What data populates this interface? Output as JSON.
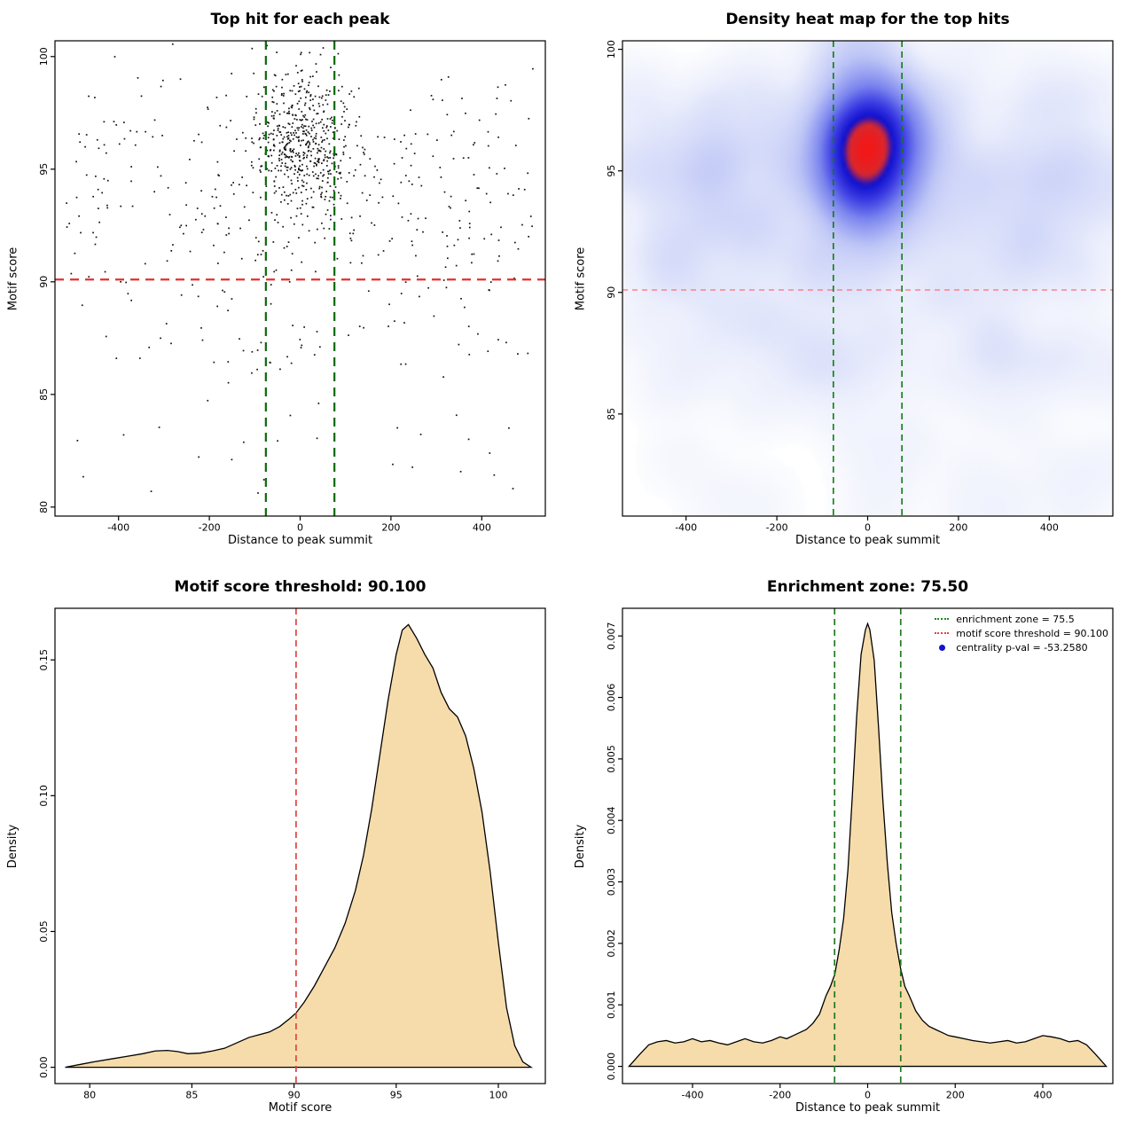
{
  "page": {
    "background": "#ffffff"
  },
  "chart_data": [
    {
      "type": "scatter",
      "title": "Top hit for each peak",
      "xlabel": "Distance to peak summit",
      "ylabel": "Motif score",
      "xlim": [
        -540,
        540
      ],
      "ylim": [
        79.6,
        100.7
      ],
      "xtick_values": [
        -400,
        -200,
        0,
        200,
        400
      ],
      "xtick_labels": [
        "-400",
        "-200",
        "0",
        "200",
        "400"
      ],
      "ytick_values": [
        80,
        85,
        90,
        95,
        100
      ],
      "ytick_labels": [
        "80",
        "85",
        "90",
        "95",
        "100"
      ],
      "point_color": "#111111",
      "point_size": 1.7,
      "points": {
        "seed": 424242,
        "clusters": [
          {
            "n": 520,
            "x": {
              "dist": "normal",
              "mean": 5,
              "sd": 55
            },
            "y": {
              "dist": "normal",
              "mean": 96.2,
              "sd": 1.6
            }
          },
          {
            "n": 330,
            "x": {
              "dist": "uniform",
              "min": -515,
              "max": 515
            },
            "y": {
              "dist": "normal",
              "mean": 94.5,
              "sd": 2.6
            }
          },
          {
            "n": 90,
            "x": {
              "dist": "uniform",
              "min": -515,
              "max": 515
            },
            "y": {
              "dist": "uniform",
              "min": 86,
              "max": 93
            }
          },
          {
            "n": 40,
            "x": {
              "dist": "uniform",
              "min": -515,
              "max": 515
            },
            "y": {
              "dist": "uniform",
              "min": 80.3,
              "max": 88
            }
          }
        ]
      },
      "hlines": [
        {
          "y": 90.1,
          "color": "#e03131",
          "width": 2.2,
          "dash": [
            10,
            7
          ]
        }
      ],
      "vlines": [
        {
          "x": -75.5,
          "color": "#0a6a0a",
          "width": 2.2,
          "dash": [
            10,
            7
          ]
        },
        {
          "x": 75.5,
          "color": "#0a6a0a",
          "width": 2.2,
          "dash": [
            10,
            7
          ]
        }
      ]
    },
    {
      "type": "density2d",
      "title": "Density heat map for the top hits",
      "xlabel": "Distance to peak summit",
      "ylabel": "Motif score",
      "xlim": [
        -540,
        540
      ],
      "ylim": [
        80.8,
        100.35
      ],
      "xtick_values": [
        -400,
        -200,
        0,
        200,
        400
      ],
      "xtick_labels": [
        "-400",
        "-200",
        "0",
        "200",
        "400"
      ],
      "ytick_values": [
        85,
        90,
        95,
        100
      ],
      "ytick_labels": [
        "85",
        "90",
        "95",
        "100"
      ],
      "points": {
        "seed": 171717,
        "clusters": [
          {
            "n": 520,
            "x": {
              "dist": "normal",
              "mean": 5,
              "sd": 55
            },
            "y": {
              "dist": "normal",
              "mean": 96.0,
              "sd": 1.6
            }
          },
          {
            "n": 330,
            "x": {
              "dist": "uniform",
              "min": -515,
              "max": 515
            },
            "y": {
              "dist": "normal",
              "mean": 94.5,
              "sd": 2.6
            }
          },
          {
            "n": 90,
            "x": {
              "dist": "uniform",
              "min": -515,
              "max": 515
            },
            "y": {
              "dist": "uniform",
              "min": 86,
              "max": 93
            }
          },
          {
            "n": 40,
            "x": {
              "dist": "uniform",
              "min": -515,
              "max": 515
            },
            "y": {
              "dist": "uniform",
              "min": 81,
              "max": 88
            }
          }
        ]
      },
      "grid": {
        "nx": 138,
        "ny": 132,
        "blur_radius": 5,
        "blur_passes": 3,
        "gamma": 0.5
      },
      "colormap": [
        {
          "t": 0.0,
          "rgb": [
            255,
            255,
            255
          ]
        },
        {
          "t": 0.15,
          "rgb": [
            236,
            239,
            252
          ]
        },
        {
          "t": 0.38,
          "rgb": [
            189,
            197,
            246
          ]
        },
        {
          "t": 0.6,
          "rgb": [
            122,
            132,
            238
          ]
        },
        {
          "t": 0.76,
          "rgb": [
            58,
            58,
            226
          ]
        },
        {
          "t": 0.87,
          "rgb": [
            16,
            16,
            206
          ]
        },
        {
          "t": 0.93,
          "rgb": [
            214,
            40,
            46
          ]
        },
        {
          "t": 1.0,
          "rgb": [
            242,
            24,
            24
          ]
        }
      ],
      "hlines": [
        {
          "y": 90.1,
          "color": "#ff6f6f",
          "width": 1.3,
          "dash": [
            6,
            5
          ]
        }
      ],
      "vlines": [
        {
          "x": -75.5,
          "color": "#127a12",
          "width": 1.6,
          "dash": [
            7,
            5
          ]
        },
        {
          "x": 75.5,
          "color": "#127a12",
          "width": 1.6,
          "dash": [
            7,
            5
          ]
        }
      ]
    },
    {
      "type": "density",
      "title": "Motif score threshold: 90.100",
      "xlabel": "Motif score",
      "ylabel": "Density",
      "xlim": [
        78.3,
        102.3
      ],
      "ylim": [
        -0.006,
        0.169
      ],
      "xtick_values": [
        80,
        85,
        90,
        95,
        100
      ],
      "xtick_labels": [
        "80",
        "85",
        "90",
        "95",
        "100"
      ],
      "ytick_values": [
        0,
        0.05,
        0.1,
        0.15
      ],
      "ytick_labels": [
        "0.00",
        "0.05",
        "0.10",
        "0.15"
      ],
      "fill": "#f6dcab",
      "stroke": "#000000",
      "curve": {
        "x": [
          78.8,
          79.5,
          80.2,
          81.0,
          81.8,
          82.6,
          83.2,
          83.8,
          84.3,
          84.8,
          85.4,
          86.0,
          86.6,
          87.2,
          87.8,
          88.3,
          88.8,
          89.3,
          89.8,
          90.1,
          90.5,
          91.0,
          91.5,
          92.0,
          92.5,
          93.0,
          93.4,
          93.8,
          94.2,
          94.6,
          95.0,
          95.3,
          95.6,
          96.0,
          96.4,
          96.8,
          97.2,
          97.6,
          98.0,
          98.4,
          98.8,
          99.2,
          99.6,
          100.0,
          100.4,
          100.8,
          101.2,
          101.6
        ],
        "y": [
          0.0,
          0.001,
          0.002,
          0.003,
          0.004,
          0.005,
          0.006,
          0.0062,
          0.0058,
          0.005,
          0.0052,
          0.006,
          0.007,
          0.009,
          0.011,
          0.012,
          0.013,
          0.015,
          0.018,
          0.02,
          0.024,
          0.03,
          0.037,
          0.044,
          0.053,
          0.065,
          0.078,
          0.095,
          0.115,
          0.135,
          0.152,
          0.161,
          0.163,
          0.158,
          0.152,
          0.147,
          0.138,
          0.132,
          0.129,
          0.122,
          0.11,
          0.094,
          0.072,
          0.046,
          0.022,
          0.008,
          0.002,
          0.0
        ]
      },
      "vlines": [
        {
          "x": 90.1,
          "color": "#e04444",
          "width": 1.7,
          "dash": [
            7,
            5
          ]
        }
      ]
    },
    {
      "type": "density",
      "title": "Enrichment zone: 75.50",
      "xlabel": "Distance to peak summit",
      "ylabel": "Density",
      "xlim": [
        -560,
        560
      ],
      "ylim": [
        -0.00028,
        0.00745
      ],
      "xtick_values": [
        -400,
        -200,
        0,
        200,
        400
      ],
      "xtick_labels": [
        "-400",
        "-200",
        "0",
        "200",
        "400"
      ],
      "ytick_values": [
        0,
        0.001,
        0.002,
        0.003,
        0.004,
        0.005,
        0.006,
        0.007
      ],
      "ytick_labels": [
        "0.000",
        "0.001",
        "0.002",
        "0.003",
        "0.004",
        "0.005",
        "0.006",
        "0.007"
      ],
      "fill": "#f6dcab",
      "stroke": "#000000",
      "curve": {
        "x": [
          -545,
          -520,
          -500,
          -480,
          -460,
          -440,
          -420,
          -400,
          -380,
          -360,
          -340,
          -320,
          -300,
          -280,
          -260,
          -240,
          -220,
          -200,
          -185,
          -170,
          -155,
          -140,
          -125,
          -110,
          -95,
          -85,
          -75,
          -65,
          -55,
          -45,
          -35,
          -25,
          -15,
          -5,
          0,
          5,
          15,
          25,
          35,
          45,
          55,
          65,
          75,
          85,
          95,
          110,
          125,
          140,
          155,
          170,
          185,
          200,
          220,
          240,
          260,
          280,
          300,
          320,
          340,
          360,
          380,
          400,
          420,
          440,
          460,
          480,
          500,
          520,
          545
        ],
        "y": [
          0.0,
          0.0002,
          0.00035,
          0.0004,
          0.00042,
          0.00038,
          0.0004,
          0.00045,
          0.0004,
          0.00042,
          0.00038,
          0.00035,
          0.0004,
          0.00045,
          0.0004,
          0.00038,
          0.00042,
          0.00048,
          0.00045,
          0.0005,
          0.00055,
          0.0006,
          0.0007,
          0.00085,
          0.00115,
          0.0013,
          0.0015,
          0.0019,
          0.0024,
          0.0032,
          0.0044,
          0.0057,
          0.0067,
          0.0071,
          0.0072,
          0.0071,
          0.0066,
          0.0055,
          0.0043,
          0.0033,
          0.0025,
          0.002,
          0.0016,
          0.0013,
          0.00115,
          0.0009,
          0.00075,
          0.00065,
          0.0006,
          0.00055,
          0.0005,
          0.00048,
          0.00045,
          0.00042,
          0.0004,
          0.00038,
          0.0004,
          0.00042,
          0.00038,
          0.0004,
          0.00045,
          0.0005,
          0.00048,
          0.00045,
          0.0004,
          0.00042,
          0.00035,
          0.0002,
          0.0
        ]
      },
      "vlines": [
        {
          "x": -75.5,
          "color": "#1f7a1f",
          "width": 1.7,
          "dash": [
            7,
            5
          ]
        },
        {
          "x": 75.5,
          "color": "#1f7a1f",
          "width": 1.7,
          "dash": [
            7,
            5
          ]
        }
      ],
      "legend": {
        "entries": [
          {
            "marker": "dotted-line",
            "color": "#1f8a1f",
            "label": "enrichment zone = 75.5"
          },
          {
            "marker": "dotted-line",
            "color": "#e04444",
            "label": "motif score threshold = 90.100"
          },
          {
            "marker": "dot",
            "color": "#1414cc",
            "label": "centrality p-val = -53.2580"
          }
        ]
      }
    }
  ]
}
